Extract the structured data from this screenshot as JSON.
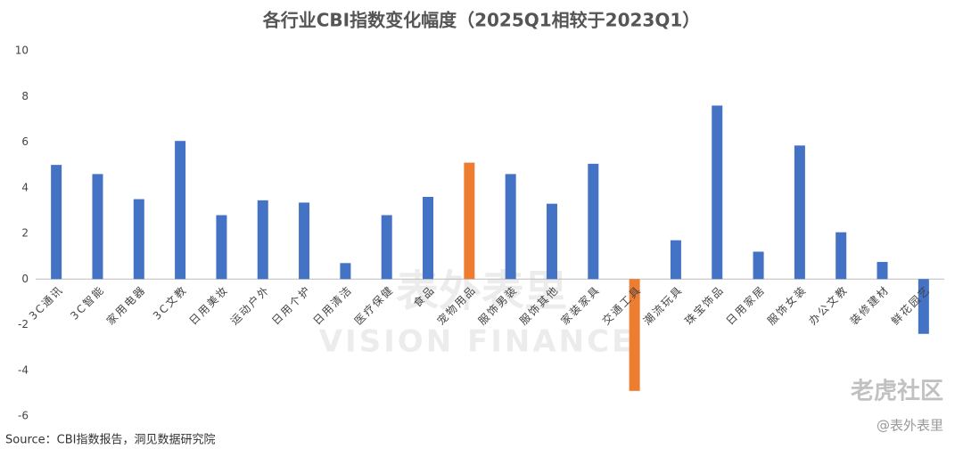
{
  "chart_data": {
    "type": "bar",
    "title": "各行业CBI指数变化幅度（2025Q1相较于2023Q1）",
    "categories": [
      "3C通讯",
      "3C智能",
      "家用电器",
      "3C文教",
      "日用美妆",
      "运动户外",
      "日用个护",
      "日用清洁",
      "医疗保健",
      "食品",
      "宠物用品",
      "服饰男装",
      "服饰其他",
      "家装家具",
      "交通工具",
      "潮流玩具",
      "珠宝饰品",
      "日用家居",
      "服饰女装",
      "办公文教",
      "装修建材",
      "鲜花园艺"
    ],
    "values": [
      5.0,
      4.6,
      3.5,
      6.05,
      2.8,
      3.45,
      3.35,
      0.7,
      2.8,
      3.6,
      5.1,
      4.6,
      3.3,
      5.05,
      -4.9,
      1.7,
      7.6,
      1.2,
      5.85,
      2.05,
      0.75,
      -2.4
    ],
    "colors": [
      "#4472c4",
      "#4472c4",
      "#4472c4",
      "#4472c4",
      "#4472c4",
      "#4472c4",
      "#4472c4",
      "#4472c4",
      "#4472c4",
      "#4472c4",
      "#ed7d31",
      "#4472c4",
      "#4472c4",
      "#4472c4",
      "#ed7d31",
      "#4472c4",
      "#4472c4",
      "#4472c4",
      "#4472c4",
      "#4472c4",
      "#4472c4",
      "#4472c4"
    ],
    "ylim": [
      -6,
      10
    ],
    "yticks": [
      -6,
      -4,
      -2,
      0,
      2,
      4,
      6,
      8,
      10
    ],
    "grid": false,
    "source": "Source：CBI指数报告，洞见数据研究院",
    "watermarks": [
      "表外表里",
      "VISION FINANCE",
      "老虎社区",
      "@表外表里"
    ]
  }
}
